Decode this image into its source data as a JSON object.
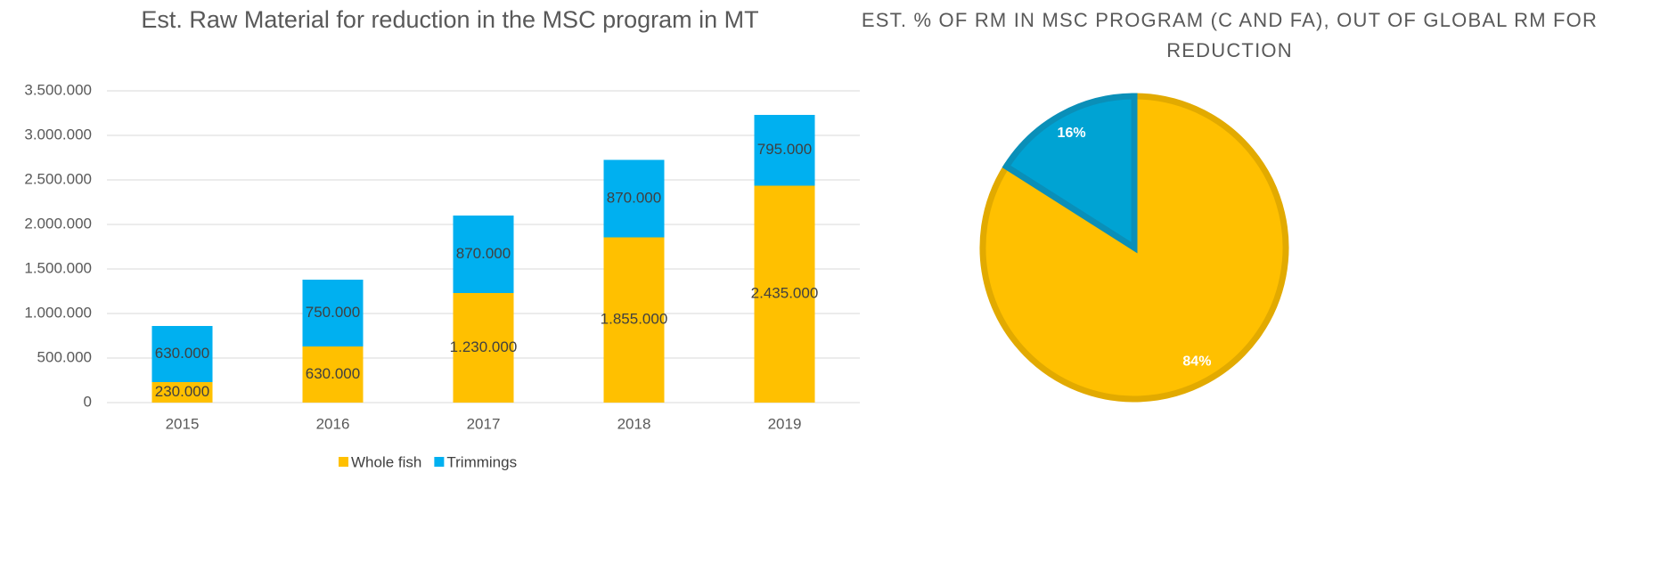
{
  "chart_data": [
    {
      "type": "stacked_bar",
      "title": "Est. Raw Material for reduction in the MSC program in MT",
      "categories": [
        "2015",
        "2016",
        "2017",
        "2018",
        "2019"
      ],
      "series": [
        {
          "name": "Whole fish",
          "color": "#FFC000",
          "values": [
            230000,
            630000,
            1230000,
            1855000,
            2435000
          ],
          "value_labels": [
            "230.000",
            "630.000",
            "1.230.000",
            "1.855.000",
            "2.435.000"
          ]
        },
        {
          "name": "Trimmings",
          "color": "#00B0F0",
          "values": [
            630000,
            750000,
            870000,
            870000,
            795000
          ],
          "value_labels": [
            "630.000",
            "750.000",
            "870.000",
            "870.000",
            "795.000"
          ]
        }
      ],
      "ylim": [
        0,
        3500000
      ],
      "yticks": [
        0,
        {
          "value": 500000,
          "label": "500.000"
        },
        {
          "value": 1000000,
          "label": "1.000.000"
        },
        {
          "value": 1500000,
          "label": "1.500.000"
        },
        {
          "value": 2000000,
          "label": "2.000.000"
        },
        {
          "value": 2500000,
          "label": "2.500.000"
        },
        {
          "value": 3000000,
          "label": "3.000.000"
        },
        {
          "value": 3500000,
          "label": "3.500.000"
        }
      ],
      "grid": true,
      "legend": "bottom"
    },
    {
      "type": "pie",
      "title": "EST. % OF RM IN MSC PROGRAM (C AND FA), OUT OF GLOBAL RM FOR REDUCTION",
      "values": [
        84,
        16
      ],
      "value_labels": [
        "84%",
        "16%"
      ],
      "colors": [
        "#FFC000",
        "#00A3D3"
      ]
    }
  ]
}
